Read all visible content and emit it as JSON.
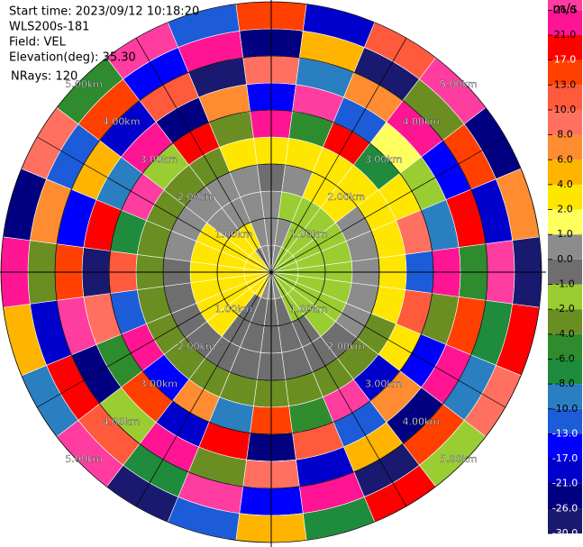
{
  "chart_data": {
    "type": "ppi",
    "header": [
      "Start time: 2023/09/12 10:18:20",
      "WLS200s-181",
      "Field: VEL",
      "Elevation(deg): 35.30",
      "NRays: 120"
    ],
    "colorbar_title": "m/s",
    "colorbar_ticks": [
      {
        "value": -30,
        "label": "-30.0"
      },
      {
        "value": -26,
        "label": "-26.0"
      },
      {
        "value": -21,
        "label": "-21.0"
      },
      {
        "value": -17,
        "label": "-17.0"
      },
      {
        "value": -13,
        "label": "-13.0"
      },
      {
        "value": -10,
        "label": "-10.0"
      },
      {
        "value": -8,
        "label": "-8.0"
      },
      {
        "value": -6,
        "label": "-6.0"
      },
      {
        "value": -4,
        "label": "-4.0"
      },
      {
        "value": -2,
        "label": "-2.0"
      },
      {
        "value": -1,
        "label": "-1.0"
      },
      {
        "value": 0,
        "label": "0.0"
      },
      {
        "value": 1,
        "label": "1.0"
      },
      {
        "value": 2,
        "label": "2.0"
      },
      {
        "value": 4,
        "label": "4.0"
      },
      {
        "value": 6,
        "label": "6.0"
      },
      {
        "value": 8,
        "label": "8.0"
      },
      {
        "value": 10,
        "label": "10.0"
      },
      {
        "value": 13,
        "label": "13.0"
      },
      {
        "value": 17,
        "label": "17.0"
      },
      {
        "value": 21,
        "label": "21.0"
      },
      {
        "value": 26,
        "label": "26.0"
      }
    ],
    "colors": [
      "#191970",
      "#000080",
      "#0000cd",
      "#0000ff",
      "#1c5cd8",
      "#2a7fc0",
      "#1e8c3c",
      "#2e8b2e",
      "#6b8e23",
      "#9acd32",
      "#6e6e6e",
      "#8c8c8c",
      "#ffff60",
      "#ffe600",
      "#ffb400",
      "#ff8c30",
      "#ff7060",
      "#ff5a3c",
      "#ff4000",
      "#ff0000",
      "#ff1493",
      "#ff3ca0"
    ],
    "rlim": [
      0,
      5
    ],
    "rings": [
      {
        "value": 1,
        "label": "1.00km"
      },
      {
        "value": 2,
        "label": "2.00km"
      },
      {
        "value": 3,
        "label": "3.00km"
      },
      {
        "value": 4,
        "label": "4.00km"
      },
      {
        "value": 5,
        "label": "5.00km"
      }
    ],
    "azimuth": [
      0,
      15,
      30,
      45,
      60,
      75,
      90,
      105,
      120,
      135,
      150,
      165,
      180,
      195,
      210,
      225,
      240,
      255,
      270,
      285,
      300,
      315,
      330,
      345
    ],
    "range_km": [
      0.25,
      0.75,
      1.25,
      1.75,
      2.25,
      2.75,
      3.25,
      3.75,
      4.25,
      4.75
    ],
    "values": [
      [
        0.5,
        0.5,
        0.5,
        -0.5,
        3,
        21,
        -17,
        8,
        -26,
        13
      ],
      [
        0.5,
        0.5,
        -1.5,
        0.5,
        3,
        -6,
        26,
        -10,
        4,
        -21
      ],
      [
        -1.5,
        -1.5,
        -1.5,
        3,
        3,
        17,
        -13,
        6,
        -30,
        10
      ],
      [
        -1.5,
        -1.5,
        -1.5,
        3,
        3,
        -8,
        1,
        21,
        -4,
        26
      ],
      [
        -1.5,
        -1.5,
        -1.5,
        0.5,
        3,
        2,
        -2,
        -17,
        13,
        -26
      ],
      [
        -1.5,
        -1.5,
        -1.5,
        0.5,
        3,
        8,
        -10,
        17,
        -21,
        6
      ],
      [
        -1.5,
        -1.5,
        -1.5,
        0.5,
        3,
        -13,
        21,
        -6,
        26,
        -30
      ],
      [
        -1.5,
        -1.5,
        -1.5,
        0.5,
        3,
        10,
        -4,
        13,
        -8,
        17
      ],
      [
        -1.5,
        -1.5,
        -1.5,
        0.5,
        -3,
        3,
        -17,
        21,
        -10,
        8
      ],
      [
        -1.5,
        -1.5,
        -1.5,
        -0.5,
        -3,
        -21,
        6,
        -26,
        13,
        -2
      ],
      [
        -1.5,
        -1.5,
        -0.5,
        -0.5,
        -3,
        26,
        -13,
        4,
        -30,
        17
      ],
      [
        0.5,
        -0.5,
        -0.5,
        -0.5,
        -3,
        -6,
        10,
        -21,
        21,
        -8
      ],
      [
        0.5,
        -0.5,
        -0.5,
        -0.5,
        -3,
        13,
        -26,
        8,
        -17,
        4
      ],
      [
        0.5,
        -0.5,
        -0.5,
        -0.5,
        -3,
        -10,
        17,
        -4,
        26,
        -13
      ],
      [
        3,
        -0.5,
        -0.5,
        -0.5,
        -3,
        6,
        -21,
        21,
        -8,
        -30
      ],
      [
        3,
        3,
        3,
        -0.5,
        -3,
        -17,
        13,
        -2,
        10,
        26
      ],
      [
        3,
        3,
        3,
        -0.5,
        -3,
        21,
        -6,
        -26,
        17,
        -10
      ],
      [
        3,
        3,
        3,
        -0.5,
        -3,
        -13,
        8,
        26,
        -21,
        4
      ],
      [
        3,
        3,
        3,
        -0.5,
        -3,
        10,
        -30,
        13,
        -4,
        21
      ],
      [
        3,
        3,
        3,
        0.5,
        -3,
        -8,
        17,
        -17,
        6,
        -26
      ],
      [
        3,
        3,
        3,
        0.5,
        -3,
        26,
        -10,
        4,
        -13,
        8
      ],
      [
        3,
        3,
        0.5,
        0.5,
        -3,
        -2,
        21,
        -21,
        13,
        -6
      ],
      [
        0.5,
        3,
        0.5,
        0.5,
        -3,
        17,
        -26,
        10,
        -17,
        26
      ],
      [
        0.5,
        0.5,
        0.5,
        0.5,
        3,
        -4,
        6,
        -30,
        21,
        -13
      ]
    ]
  }
}
